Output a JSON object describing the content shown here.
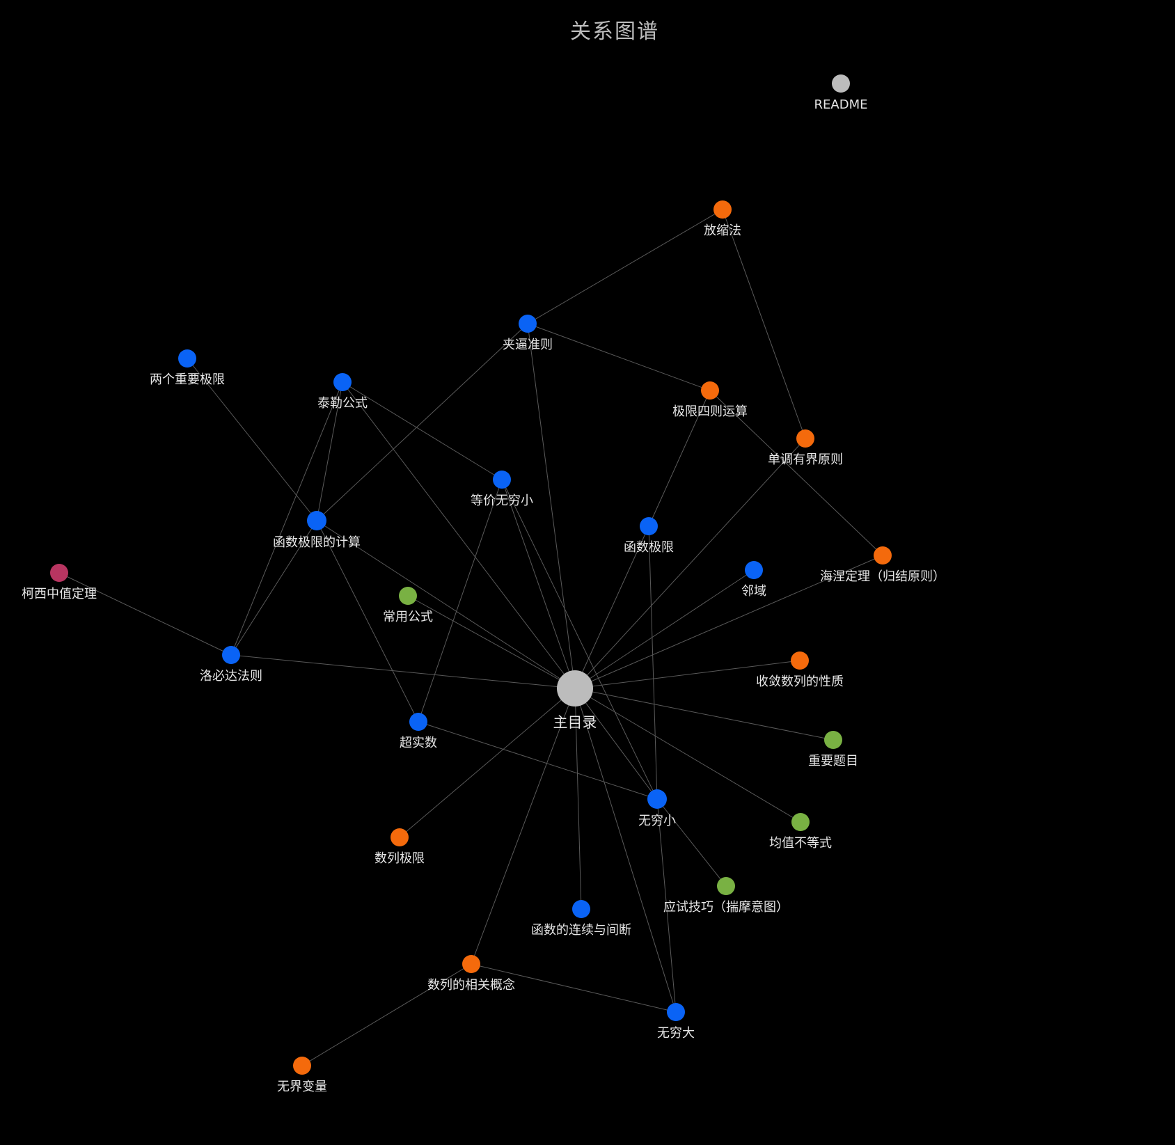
{
  "title": "关系图谱",
  "colors": {
    "background": "#000000",
    "edge": "#5a5a5a",
    "label": "#e6e6e6",
    "blue": "#0a63f5",
    "orange": "#f46a0c",
    "green": "#79b143",
    "gray": "#bcbcbc",
    "magenta": "#b83561"
  },
  "nodes": [
    {
      "id": "readme",
      "label": "README",
      "color": "gray"
    },
    {
      "id": "main",
      "label": "主目录",
      "color": "gray",
      "hub": true
    },
    {
      "id": "fangsuo",
      "label": "放缩法",
      "color": "orange"
    },
    {
      "id": "jiabi",
      "label": "夹逼准则",
      "color": "blue"
    },
    {
      "id": "liangge",
      "label": "两个重要极限",
      "color": "blue"
    },
    {
      "id": "taile",
      "label": "泰勒公式",
      "color": "blue"
    },
    {
      "id": "sizeyunsuan",
      "label": "极限四则运算",
      "color": "orange"
    },
    {
      "id": "dandiao",
      "label": "单调有界原则",
      "color": "orange"
    },
    {
      "id": "dengjia",
      "label": "等价无穷小",
      "color": "blue"
    },
    {
      "id": "hanshujixian_jisuan",
      "label": "函数极限的计算",
      "color": "blue"
    },
    {
      "id": "hanshujixian",
      "label": "函数极限",
      "color": "blue"
    },
    {
      "id": "haine",
      "label": "海涅定理（归结原则）",
      "color": "orange"
    },
    {
      "id": "kexi",
      "label": "柯西中值定理",
      "color": "magenta"
    },
    {
      "id": "linyu",
      "label": "邻域",
      "color": "blue"
    },
    {
      "id": "changyong",
      "label": "常用公式",
      "color": "green"
    },
    {
      "id": "luobida",
      "label": "洛必达法则",
      "color": "blue"
    },
    {
      "id": "shoulian",
      "label": "收敛数列的性质",
      "color": "orange"
    },
    {
      "id": "chaoshishu",
      "label": "超实数",
      "color": "blue"
    },
    {
      "id": "zhongyao",
      "label": "重要题目",
      "color": "green"
    },
    {
      "id": "wuqiongxiao",
      "label": "无穷小",
      "color": "blue"
    },
    {
      "id": "junzhi",
      "label": "均值不等式",
      "color": "green"
    },
    {
      "id": "shulie",
      "label": "数列极限",
      "color": "orange"
    },
    {
      "id": "yingshi",
      "label": "应试技巧（揣摩意图）",
      "color": "green"
    },
    {
      "id": "lianxu",
      "label": "函数的连续与间断",
      "color": "blue"
    },
    {
      "id": "xiangguan",
      "label": "数列的相关概念",
      "color": "orange"
    },
    {
      "id": "wuqiongda",
      "label": "无穷大",
      "color": "blue"
    },
    {
      "id": "wujie",
      "label": "无界变量",
      "color": "orange"
    }
  ],
  "edges": [
    [
      "main",
      "jiabi"
    ],
    [
      "main",
      "taile"
    ],
    [
      "main",
      "dengjia"
    ],
    [
      "main",
      "hanshujixian_jisuan"
    ],
    [
      "main",
      "hanshujixian"
    ],
    [
      "main",
      "dandiao"
    ],
    [
      "main",
      "linyu"
    ],
    [
      "main",
      "haine"
    ],
    [
      "main",
      "changyong"
    ],
    [
      "main",
      "luobida"
    ],
    [
      "main",
      "shoulian"
    ],
    [
      "main",
      "zhongyao"
    ],
    [
      "main",
      "wuqiongxiao"
    ],
    [
      "main",
      "junzhi"
    ],
    [
      "main",
      "shulie"
    ],
    [
      "main",
      "lianxu"
    ],
    [
      "main",
      "xiangguan"
    ],
    [
      "main",
      "wuqiongda"
    ],
    [
      "fangsuo",
      "jiabi"
    ],
    [
      "fangsuo",
      "dandiao"
    ],
    [
      "jiabi",
      "sizeyunsuan"
    ],
    [
      "jiabi",
      "hanshujixian_jisuan"
    ],
    [
      "sizeyunsuan",
      "hanshujixian"
    ],
    [
      "sizeyunsuan",
      "haine"
    ],
    [
      "liangge",
      "hanshujixian_jisuan"
    ],
    [
      "taile",
      "dengjia"
    ],
    [
      "taile",
      "hanshujixian_jisuan"
    ],
    [
      "taile",
      "luobida"
    ],
    [
      "dengjia",
      "chaoshishu"
    ],
    [
      "dengjia",
      "wuqiongxiao"
    ],
    [
      "hanshujixian_jisuan",
      "luobida"
    ],
    [
      "hanshujixian_jisuan",
      "chaoshishu"
    ],
    [
      "hanshujixian",
      "wuqiongxiao"
    ],
    [
      "kexi",
      "luobida"
    ],
    [
      "chaoshishu",
      "wuqiongxiao"
    ],
    [
      "wuqiongxiao",
      "yingshi"
    ],
    [
      "wuqiongxiao",
      "wuqiongda"
    ],
    [
      "xiangguan",
      "wuqiongda"
    ],
    [
      "xiangguan",
      "wujie"
    ]
  ]
}
